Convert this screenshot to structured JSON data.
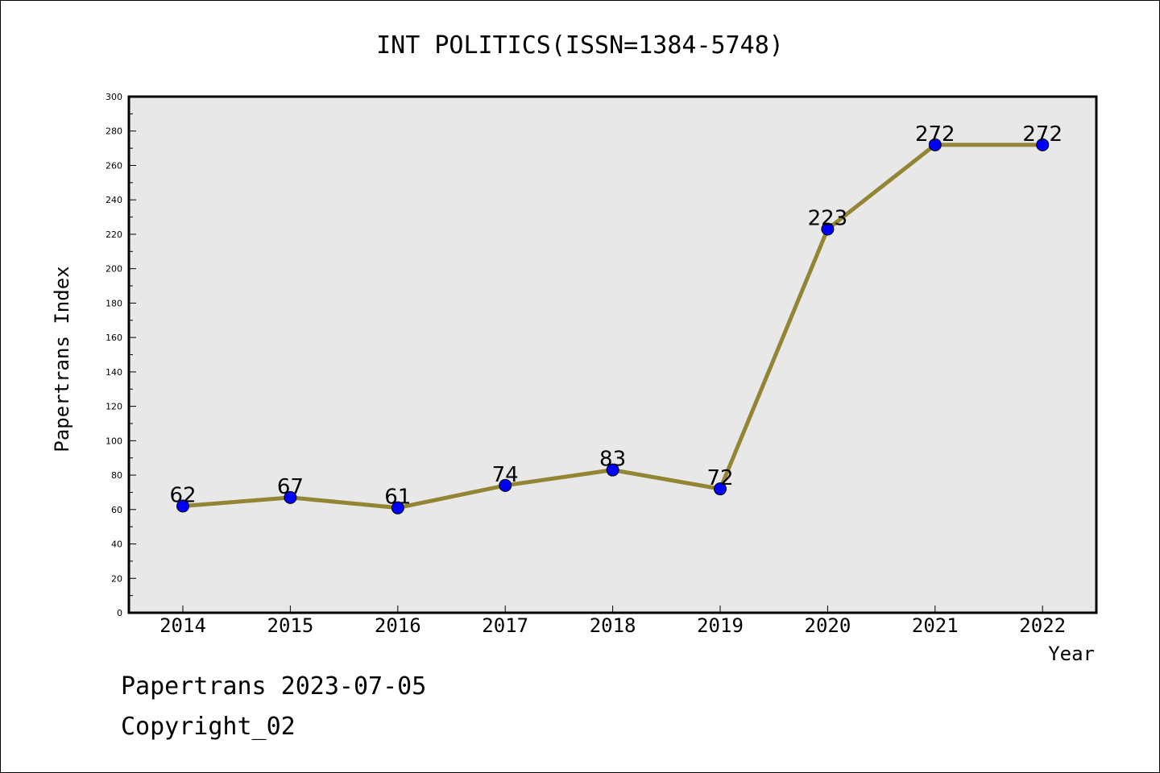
{
  "footer": {
    "line1": "Papertrans 2023-07-05",
    "line2": "Copyright_02"
  },
  "chart_data": {
    "type": "line",
    "title": "INT POLITICS(ISSN=1384-5748)",
    "xlabel": "Year",
    "ylabel": "Papertrans Index",
    "categories": [
      "2014",
      "2015",
      "2016",
      "2017",
      "2018",
      "2019",
      "2020",
      "2021",
      "2022"
    ],
    "series": [
      {
        "values": [
          62,
          67,
          61,
          74,
          83,
          72,
          223,
          272,
          272
        ]
      }
    ],
    "data_labels": [
      "62",
      "67",
      "61",
      "74",
      "83",
      "72",
      "223",
      "272",
      "272"
    ],
    "ylim": [
      0,
      300
    ],
    "y_ticks": [
      "0",
      "20",
      "40",
      "60",
      "80",
      "100",
      "120",
      "140",
      "160",
      "180",
      "200",
      "220",
      "240",
      "260",
      "280",
      "300"
    ],
    "grid": false,
    "colors": {
      "line": "#948535",
      "marker": "#0000ff",
      "plot_background": "#e8e8e8"
    }
  }
}
